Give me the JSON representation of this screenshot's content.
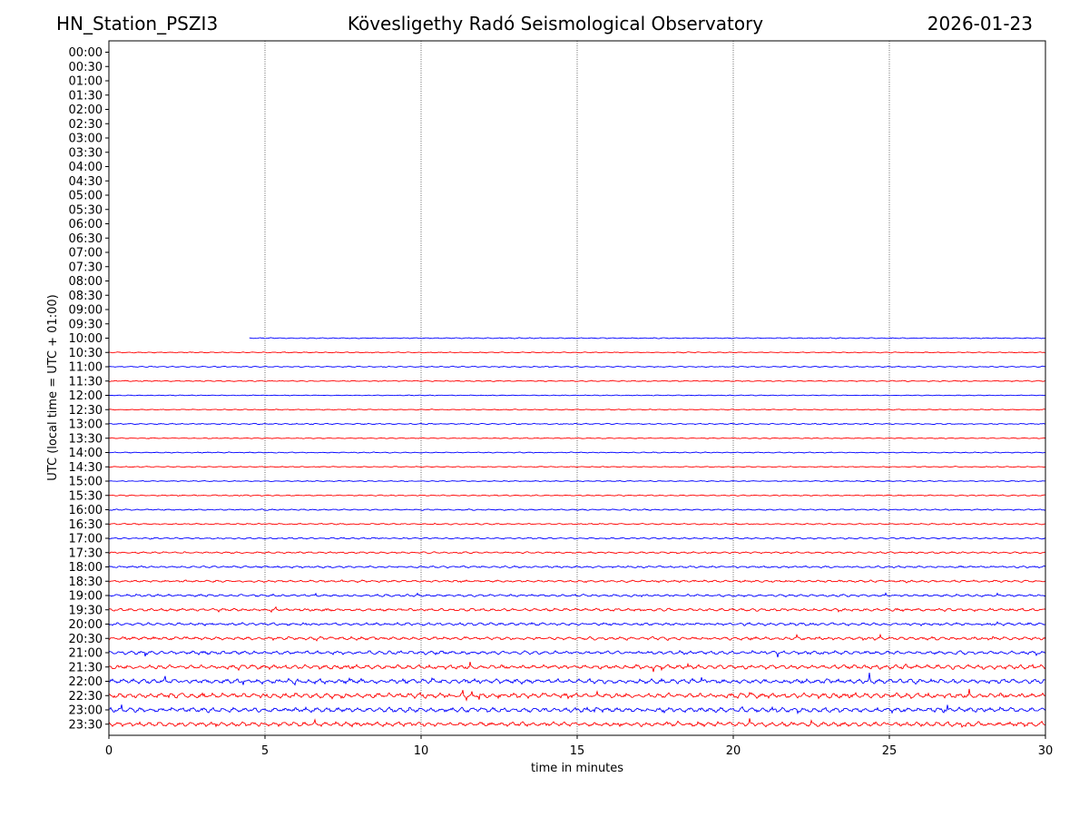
{
  "header": {
    "station": "HN_Station_PSZI3",
    "observatory": "Kövesligethy Radó Seismological Observatory",
    "date": "2026-01-23"
  },
  "chart_data": {
    "type": "line",
    "title": "Kövesligethy Radó Seismological Observatory",
    "xlabel": "time in minutes",
    "ylabel": "UTC (local time = UTC + 01:00)",
    "xlim": [
      0,
      30
    ],
    "xticks": [
      0,
      5,
      10,
      15,
      20,
      25,
      30
    ],
    "vgrid_at": [
      5,
      10,
      15,
      20,
      25
    ],
    "grid": "vertical dotted",
    "trace_colors": [
      "#0000ff",
      "#ff0000"
    ],
    "rows": [
      {
        "label": "00:00",
        "start": null,
        "amp": 0
      },
      {
        "label": "00:30",
        "start": null,
        "amp": 0
      },
      {
        "label": "01:00",
        "start": null,
        "amp": 0
      },
      {
        "label": "01:30",
        "start": null,
        "amp": 0
      },
      {
        "label": "02:00",
        "start": null,
        "amp": 0
      },
      {
        "label": "02:30",
        "start": null,
        "amp": 0
      },
      {
        "label": "03:00",
        "start": null,
        "amp": 0
      },
      {
        "label": "03:30",
        "start": null,
        "amp": 0
      },
      {
        "label": "04:00",
        "start": null,
        "amp": 0
      },
      {
        "label": "04:30",
        "start": null,
        "amp": 0
      },
      {
        "label": "05:00",
        "start": null,
        "amp": 0
      },
      {
        "label": "05:30",
        "start": null,
        "amp": 0
      },
      {
        "label": "06:00",
        "start": null,
        "amp": 0
      },
      {
        "label": "06:30",
        "start": null,
        "amp": 0
      },
      {
        "label": "07:00",
        "start": null,
        "amp": 0
      },
      {
        "label": "07:30",
        "start": null,
        "amp": 0
      },
      {
        "label": "08:00",
        "start": null,
        "amp": 0
      },
      {
        "label": "08:30",
        "start": null,
        "amp": 0
      },
      {
        "label": "09:00",
        "start": null,
        "amp": 0
      },
      {
        "label": "09:30",
        "start": null,
        "amp": 0
      },
      {
        "label": "10:00",
        "start": 4.5,
        "amp": 0.5
      },
      {
        "label": "10:30",
        "start": 0,
        "amp": 0.5
      },
      {
        "label": "11:00",
        "start": 0,
        "amp": 0.6
      },
      {
        "label": "11:30",
        "start": 0,
        "amp": 0.6
      },
      {
        "label": "12:00",
        "start": 0,
        "amp": 0.4
      },
      {
        "label": "12:30",
        "start": 0,
        "amp": 0.5
      },
      {
        "label": "13:00",
        "start": 0,
        "amp": 0.6
      },
      {
        "label": "13:30",
        "start": 0,
        "amp": 0.5
      },
      {
        "label": "14:00",
        "start": 0,
        "amp": 0.5
      },
      {
        "label": "14:30",
        "start": 0,
        "amp": 0.5
      },
      {
        "label": "15:00",
        "start": 0,
        "amp": 0.5
      },
      {
        "label": "15:30",
        "start": 0,
        "amp": 0.6
      },
      {
        "label": "16:00",
        "start": 0,
        "amp": 0.7
      },
      {
        "label": "16:30",
        "start": 0,
        "amp": 0.7
      },
      {
        "label": "17:00",
        "start": 0,
        "amp": 0.8
      },
      {
        "label": "17:30",
        "start": 0,
        "amp": 0.9
      },
      {
        "label": "18:00",
        "start": 0,
        "amp": 1.0
      },
      {
        "label": "18:30",
        "start": 0,
        "amp": 1.1
      },
      {
        "label": "19:00",
        "start": 0,
        "amp": 1.2
      },
      {
        "label": "19:30",
        "start": 0,
        "amp": 1.4
      },
      {
        "label": "20:00",
        "start": 0,
        "amp": 1.4
      },
      {
        "label": "20:30",
        "start": 0,
        "amp": 1.6
      },
      {
        "label": "21:00",
        "start": 0,
        "amp": 1.8
      },
      {
        "label": "21:30",
        "start": 0,
        "amp": 2.1
      },
      {
        "label": "22:00",
        "start": 0,
        "amp": 2.3
      },
      {
        "label": "22:30",
        "start": 0,
        "amp": 2.5
      },
      {
        "label": "23:00",
        "start": 0,
        "amp": 2.5
      },
      {
        "label": "23:30",
        "start": 0,
        "amp": 2.2
      }
    ]
  }
}
